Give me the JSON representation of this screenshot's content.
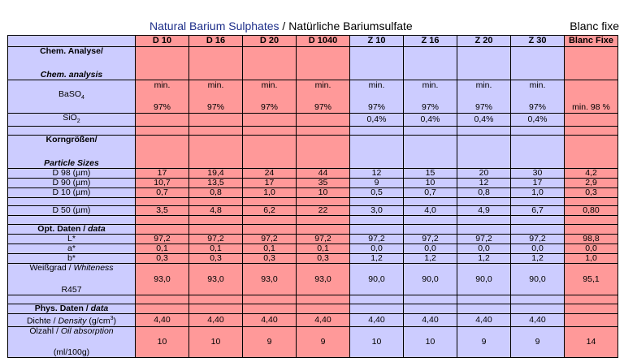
{
  "title": {
    "part1": "Natural Barium Sulphates",
    "sep": " / ",
    "part2": "Natürliche Bariumsulfate"
  },
  "blanc_fixe_label": "Blanc fixe",
  "columns": [
    "D 10",
    "D 16",
    "D 20",
    "D 1040",
    "Z 10",
    "Z 16",
    "Z 20",
    "Z 30",
    "Blanc Fixe"
  ],
  "sections": {
    "chem_de": "Chem. Analyse/",
    "chem_en": "Chem. analysis",
    "particle_de": "Korngrößen/",
    "particle_en": "Particle Sizes",
    "opt_de": "Opt. Daten / ",
    "opt_en": "data",
    "phys_de": "Phys. Daten / ",
    "phys_en": "data"
  },
  "labels": {
    "baso4": "BaSO",
    "baso4_sub": "4",
    "sio2": "SiO",
    "sio2_sub": "2",
    "d98": "D 98 (µm)",
    "d90": "D 90 (µm)",
    "d10": "D 10 (µm)",
    "d50": "D 50 (µm)",
    "l": "L*",
    "a": "a*",
    "b": "b*",
    "whiteness_de": "Weißgrad / ",
    "whiteness_en": "Whiteness",
    "r457": "R457",
    "density_de": "Dichte / ",
    "density_en": "Density",
    "density_unit": " (g/cm",
    "density_unit_sup": "3",
    "density_unit_end": ")",
    "oil_de": "Ölzahl / ",
    "oil_en": "Oil absorption",
    "oil_unit": "(ml/100g)"
  },
  "rows": {
    "baso4_min": [
      "min.",
      "min.",
      "min.",
      "min.",
      "min.",
      "min.",
      "min.",
      "min.",
      ""
    ],
    "baso4_val": [
      "97%",
      "97%",
      "97%",
      "97%",
      "97%",
      "97%",
      "97%",
      "97%",
      "min. 98 %"
    ],
    "sio2": [
      "",
      "",
      "",
      "",
      "0,4%",
      "0,4%",
      "0,4%",
      "0,4%",
      ""
    ],
    "d98": [
      "17",
      "19,4",
      "24",
      "44",
      "12",
      "15",
      "20",
      "30",
      "4,2"
    ],
    "d90": [
      "10,7",
      "13,5",
      "17",
      "35",
      "9",
      "10",
      "12",
      "17",
      "2,9"
    ],
    "d10": [
      "0,7",
      "0,8",
      "1,0",
      "10",
      "0,5",
      "0,7",
      "0,8",
      "1,0",
      "0,3"
    ],
    "d50": [
      "3,5",
      "4,8",
      "6,2",
      "22",
      "3,0",
      "4,0",
      "4,9",
      "6,7",
      "0,80"
    ],
    "l": [
      "97,2",
      "97,2",
      "97,2",
      "97,2",
      "97,2",
      "97,2",
      "97,2",
      "97,2",
      "98,8"
    ],
    "a": [
      "0,1",
      "0,1",
      "0,1",
      "0,1",
      "0,0",
      "0,0",
      "0,0",
      "0,0",
      "0,0"
    ],
    "b": [
      "0,3",
      "0,3",
      "0,3",
      "0,3",
      "1,2",
      "1,2",
      "1,2",
      "1,2",
      "1,0"
    ],
    "whiteness": [
      "93,0",
      "93,0",
      "93,0",
      "93,0",
      "90,0",
      "90,0",
      "90,0",
      "90,0",
      "95,1"
    ],
    "density": [
      "4,40",
      "4,40",
      "4,40",
      "4,40",
      "4,40",
      "4,40",
      "4,40",
      "4,40",
      ""
    ],
    "oil": [
      "10",
      "10",
      "9",
      "9",
      "10",
      "10",
      "9",
      "9",
      "14"
    ]
  },
  "colors": {
    "d_series": "#ff9999",
    "z_series": "#ccccff",
    "title_blue": "#1e2f8a"
  }
}
